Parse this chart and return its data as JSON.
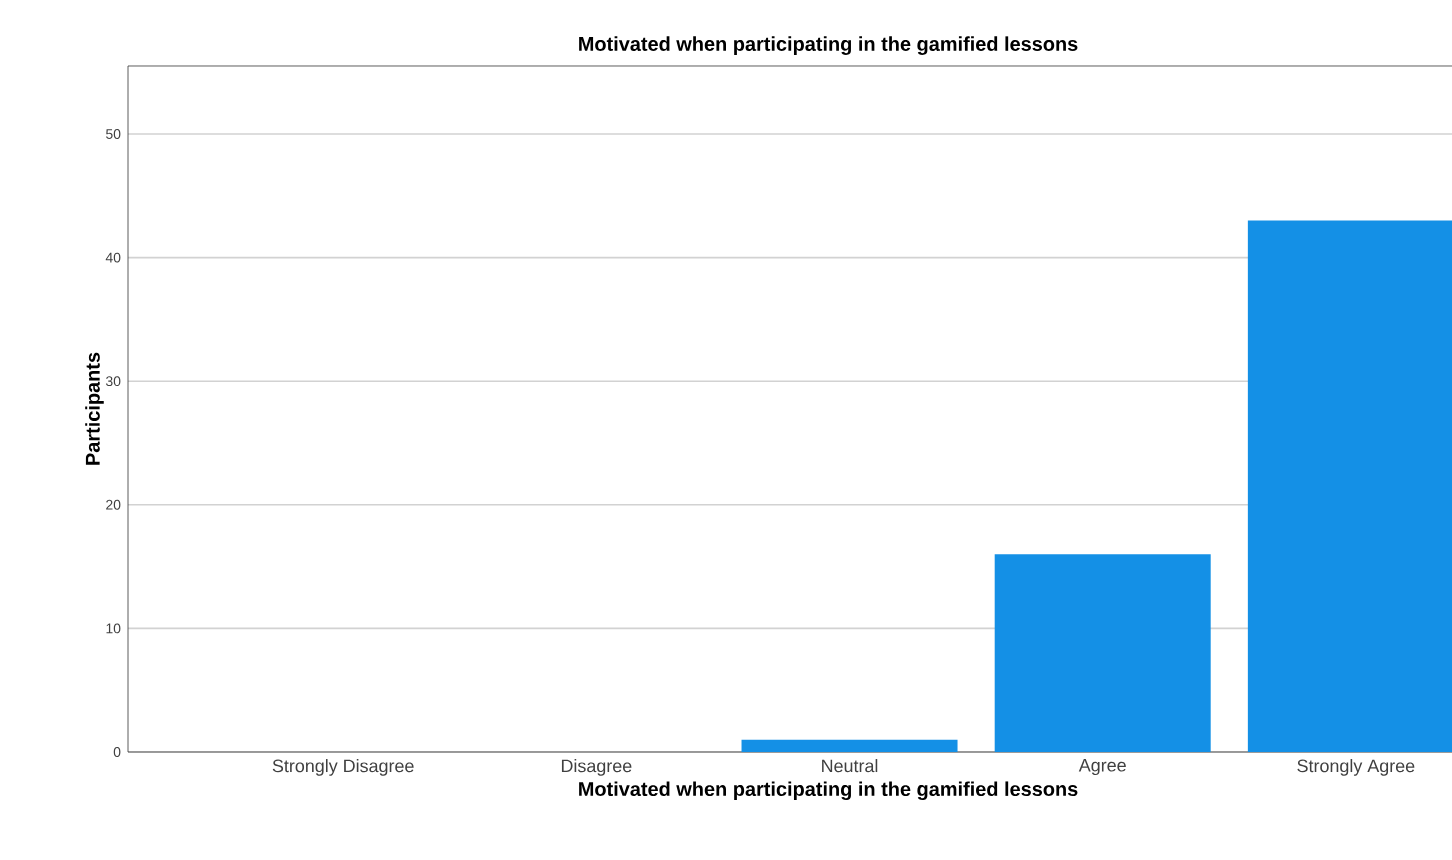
{
  "chart_data": {
    "type": "bar",
    "title": "Motivated when participating in the gamified lessons",
    "xlabel": "Motivated when participating in the gamified lessons",
    "ylabel": "Participants",
    "categories": [
      "Strongly Disagree",
      "Disagree",
      "Neutral",
      "Agree",
      "Strongly Agree"
    ],
    "values": [
      0,
      0,
      1,
      16,
      43
    ],
    "color": "#1490e6",
    "ylim": [
      0,
      55.5
    ],
    "yticks": [
      0,
      10,
      20,
      30,
      40,
      50
    ],
    "grid": "y"
  }
}
